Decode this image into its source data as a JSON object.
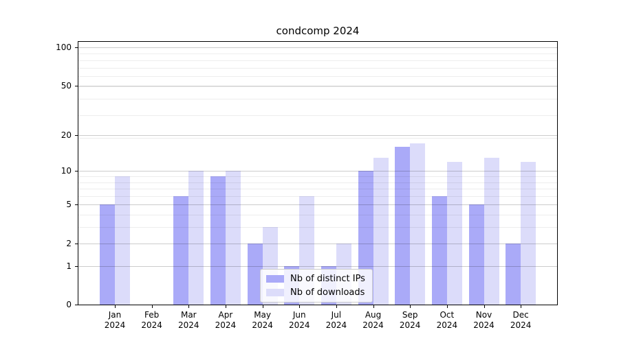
{
  "chart_data": {
    "type": "bar",
    "title": "condcomp 2024",
    "categories": [
      "Jan",
      "Feb",
      "Mar",
      "Apr",
      "May",
      "Jun",
      "Jul",
      "Aug",
      "Sep",
      "Oct",
      "Nov",
      "Dec"
    ],
    "year": "2024",
    "series": [
      {
        "name": "Nb of distinct IPs",
        "color": "#aaaaf8",
        "values": [
          5,
          0,
          6,
          9,
          2,
          1,
          1,
          10,
          16,
          6,
          5,
          2
        ]
      },
      {
        "name": "Nb of downloads",
        "color": "#dcdcfa",
        "values": [
          9,
          0,
          10,
          10,
          3,
          6,
          2,
          13,
          17,
          12,
          13,
          12
        ]
      }
    ],
    "xlabel": "",
    "ylabel": "",
    "y_scale": "log1p",
    "y_ticks": [
      0,
      1,
      2,
      5,
      10,
      20,
      50,
      100
    ],
    "y_minor_ticks": [
      3,
      4,
      6,
      7,
      8,
      9,
      19,
      29,
      39,
      49,
      59,
      69,
      79,
      89
    ],
    "ylim": [
      0,
      113
    ],
    "grid": "horizontal",
    "legend_position": "lower center"
  }
}
